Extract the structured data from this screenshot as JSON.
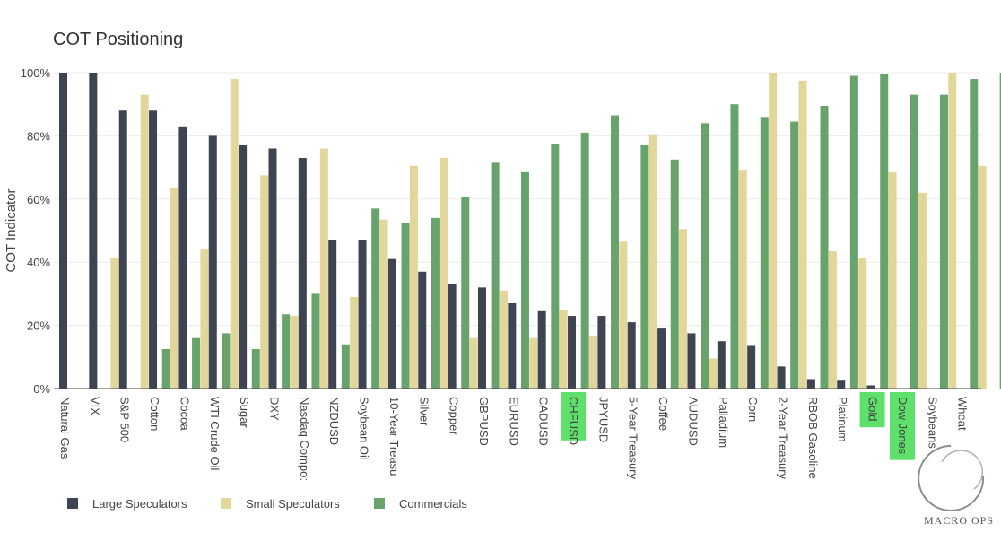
{
  "chart_data": {
    "type": "bar",
    "title": "COT Positioning",
    "ylabel": "COT Indicator",
    "xlabel": "",
    "ylim": [
      0,
      100
    ],
    "yticks": [
      "0%",
      "20%",
      "40%",
      "60%",
      "80%",
      "100%"
    ],
    "grid": true,
    "legend_position": "bottom-left",
    "categories": [
      "Natural Gas",
      "VIX",
      "S&P 500",
      "Cotton",
      "Cocoa",
      "WTI Crude Oil",
      "Sugar",
      "DXY",
      "Nasdaq Compo:",
      "NZDUSD",
      "Soybean Oil",
      "10-Year Treasu",
      "Silver",
      "Copper",
      "GBPUSD",
      "EURUSD",
      "CADUSD",
      "CHFUSD",
      "JPYUSD",
      "5-Year Treasury",
      "Coffee",
      "AUDUSD",
      "Palladium",
      "Corn",
      "2-Year Treasury",
      "RBOB Gasoline",
      "Platinum",
      "Gold",
      "Dow Jones",
      "Soybeans",
      "Wheat"
    ],
    "highlighted_categories": [
      "CHFUSD",
      "Gold",
      "Dow Jones"
    ],
    "highlight_color": "#5ee06a",
    "series": [
      {
        "name": "Large Speculators",
        "color": "#3e4451",
        "values": [
          100,
          100,
          88,
          88,
          83,
          80,
          77,
          76,
          73,
          47,
          47,
          41,
          37,
          33,
          32,
          27,
          24.5,
          23,
          23,
          21,
          19,
          17.5,
          15,
          13.5,
          7,
          3,
          2.5,
          1,
          0,
          0,
          0
        ]
      },
      {
        "name": "Small Speculators",
        "color": "#e2d69b",
        "values": [
          0,
          41.5,
          93,
          63.5,
          44,
          98,
          67.5,
          23,
          76,
          29,
          53.5,
          70.5,
          73,
          16,
          31,
          16,
          25,
          16.5,
          46.5,
          80.5,
          50.5,
          9.5,
          69,
          100,
          97.5,
          43.5,
          41.5,
          68.5,
          62,
          100,
          70.5
        ]
      },
      {
        "name": "Commercials",
        "color": "#67a36b",
        "values": [
          0,
          0,
          12.5,
          16,
          17.5,
          12.5,
          23.5,
          30,
          14,
          57,
          52.5,
          54,
          60.5,
          71.5,
          68.5,
          77.5,
          81,
          86.5,
          77,
          72.5,
          84,
          90,
          86,
          84.5,
          89.5,
          99,
          99.5,
          93,
          93,
          98,
          100
        ]
      }
    ]
  },
  "watermark": {
    "text": "MACRO OPS"
  }
}
